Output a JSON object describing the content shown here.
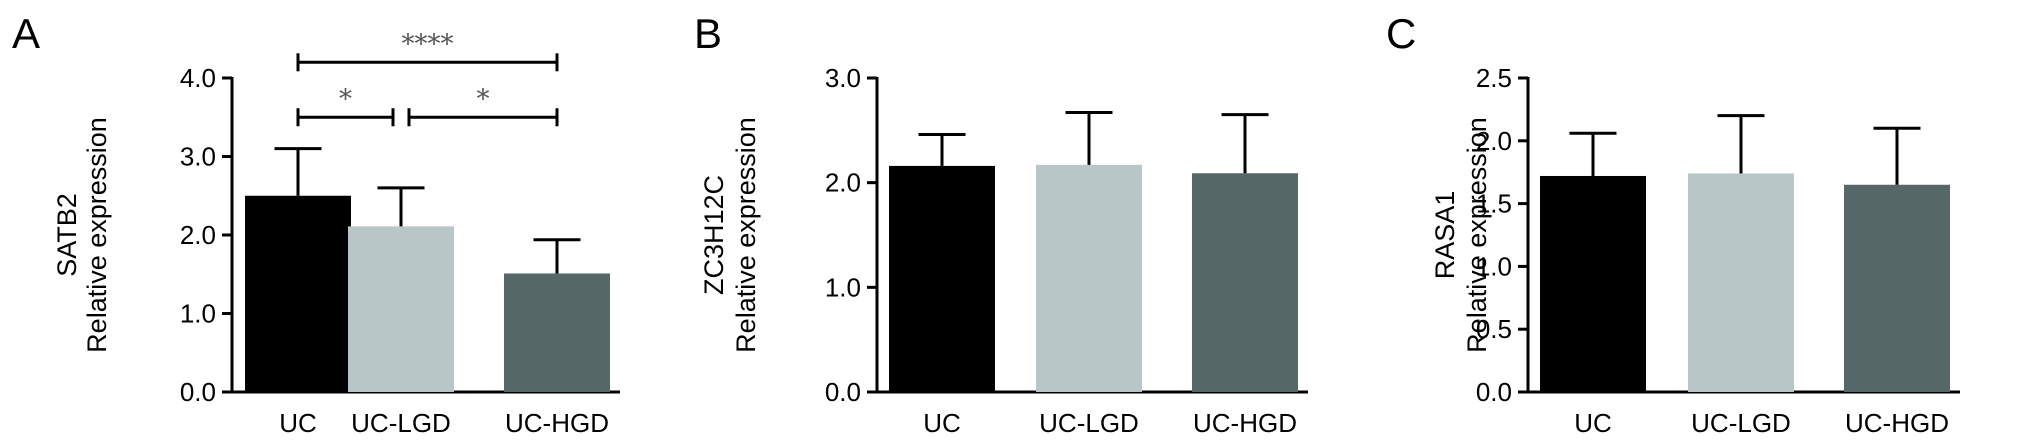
{
  "figure": {
    "panels": [
      "A",
      "B",
      "C"
    ]
  },
  "colors": {
    "UC": "#000000",
    "UC-LGD": "#b9c6c8",
    "UC-HGD": "#566767",
    "axis": "#000000",
    "sig": "#555555"
  },
  "chart_data": [
    {
      "type": "bar",
      "panel": "A",
      "categories": [
        "UC",
        "UC-LGD",
        "UC-HGD"
      ],
      "values": [
        2.5,
        2.11,
        1.51
      ],
      "errors": [
        0.6,
        0.49,
        0.43
      ],
      "ylabel_lines": [
        "SATB2",
        "Relative expression"
      ],
      "ylim": [
        0,
        4.0
      ],
      "yticks": [
        0.0,
        1.0,
        2.0,
        3.0,
        4.0
      ],
      "ytick_labels": [
        "0.0",
        "1.0",
        "2.0",
        "3.0",
        "4.0"
      ],
      "significance": [
        {
          "from": 0,
          "to": 1,
          "label": "*",
          "level": 3.5
        },
        {
          "from": 1,
          "to": 2,
          "label": "*",
          "level": 3.5
        },
        {
          "from": 0,
          "to": 2,
          "label": "****",
          "level": 4.2
        }
      ]
    },
    {
      "type": "bar",
      "panel": "B",
      "categories": [
        "UC",
        "UC-LGD",
        "UC-HGD"
      ],
      "values": [
        2.16,
        2.17,
        2.09
      ],
      "errors": [
        0.3,
        0.5,
        0.56
      ],
      "ylabel_lines": [
        "ZC3H12C",
        "Relative expression"
      ],
      "ylim": [
        0,
        3.0
      ],
      "yticks": [
        0.0,
        1.0,
        2.0,
        3.0
      ],
      "ytick_labels": [
        "0.0",
        "1.0",
        "2.0",
        "3.0"
      ],
      "significance": []
    },
    {
      "type": "bar",
      "panel": "C",
      "categories": [
        "UC",
        "UC-LGD",
        "UC-HGD"
      ],
      "values": [
        1.72,
        1.74,
        1.65
      ],
      "errors": [
        0.34,
        0.46,
        0.45
      ],
      "ylabel_lines": [
        "RASA1",
        "Relative expression"
      ],
      "ylim": [
        0,
        2.5
      ],
      "yticks": [
        0.0,
        0.5,
        1.0,
        1.5,
        2.0,
        2.5
      ],
      "ytick_labels": [
        "0.0",
        "0.5",
        "1.0",
        "1.5",
        "2.0",
        "2.5"
      ],
      "significance": []
    }
  ]
}
